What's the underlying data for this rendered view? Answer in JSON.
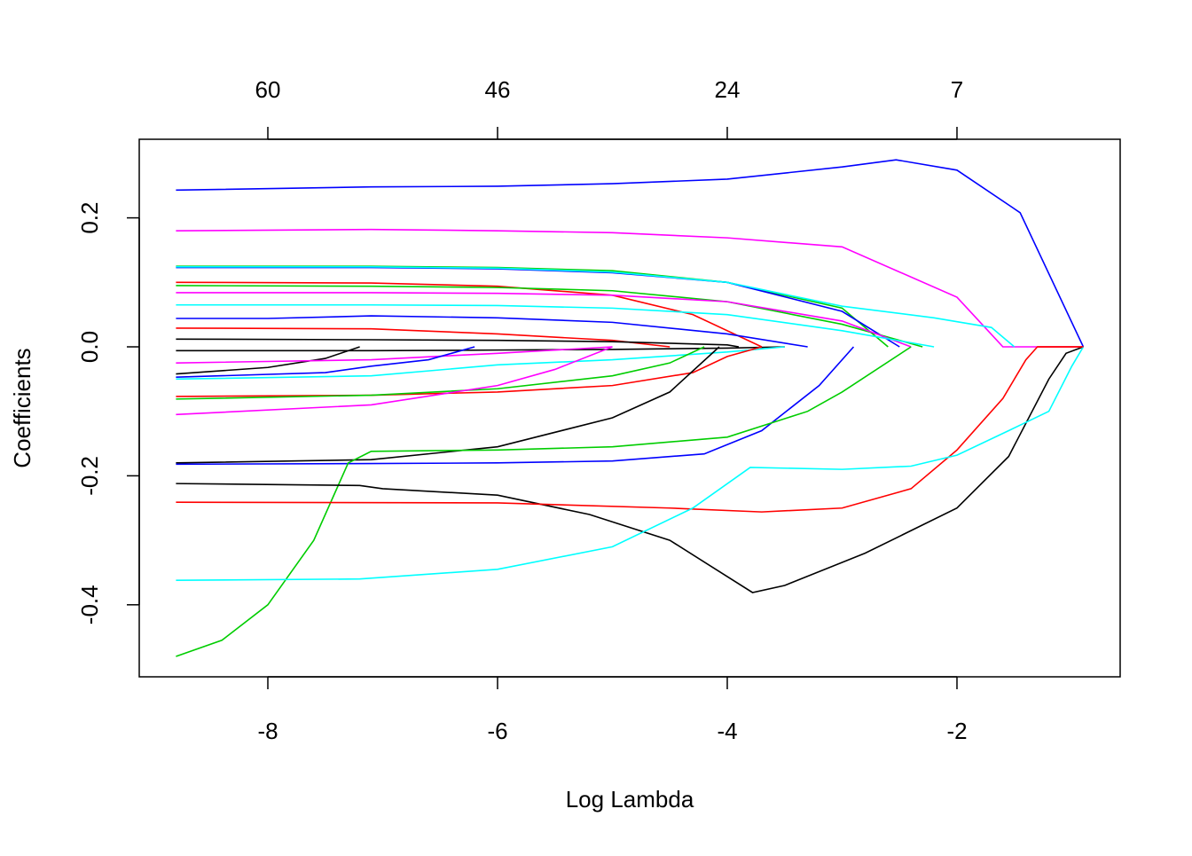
{
  "chart_data": {
    "type": "line",
    "xlabel": "Log Lambda",
    "ylabel": "Coefficients",
    "xlim": [
      -9.0,
      -0.55
    ],
    "ylim": [
      -0.51,
      0.32
    ],
    "x_ticks": [
      -8,
      -6,
      -4,
      -2
    ],
    "x_tick_labels": [
      "-8",
      "-6",
      "-4",
      "-2"
    ],
    "y_ticks": [
      -0.4,
      -0.2,
      0.0,
      0.2
    ],
    "y_tick_labels": [
      "-0.4",
      "-0.2",
      "0.0",
      "0.2"
    ],
    "top_axis_ticks": [
      -8,
      -6,
      -4,
      -2
    ],
    "top_axis_labels": [
      "60",
      "46",
      "24",
      "7"
    ],
    "grid": false,
    "series": [
      {
        "color": "#0000FF",
        "x": [
          -8.8,
          -7.1,
          -6,
          -5,
          -4,
          -3,
          -2.53,
          -2,
          -1.45,
          -0.9
        ],
        "y": [
          0.243,
          0.248,
          0.249,
          0.253,
          0.26,
          0.279,
          0.29,
          0.274,
          0.208,
          0
        ]
      },
      {
        "color": "#FF00FF",
        "x": [
          -8.8,
          -7.1,
          -6,
          -5,
          -4,
          -3,
          -2,
          -1.6,
          -0.9
        ],
        "y": [
          0.18,
          0.182,
          0.18,
          0.177,
          0.169,
          0.155,
          0.077,
          0,
          0
        ]
      },
      {
        "color": "#00CD00",
        "x": [
          -8.8,
          -7.1,
          -6,
          -5,
          -4,
          -3,
          -2.6
        ],
        "y": [
          0.125,
          0.125,
          0.123,
          0.118,
          0.1,
          0.06,
          0
        ]
      },
      {
        "color": "#0000FF",
        "x": [
          -8.8,
          -7.1,
          -6,
          -5,
          -4,
          -3,
          -2.5
        ],
        "y": [
          0.123,
          0.123,
          0.121,
          0.115,
          0.1,
          0.055,
          0
        ]
      },
      {
        "color": "#00FFFF",
        "x": [
          -8.8,
          -7.1,
          -6,
          -5,
          -4,
          -3,
          -2.2,
          -1.7,
          -1.5
        ],
        "y": [
          0.124,
          0.124,
          0.122,
          0.116,
          0.1,
          0.063,
          0.045,
          0.03,
          0
        ]
      },
      {
        "color": "#FF0000",
        "x": [
          -8.8,
          -7.1,
          -6,
          -5,
          -4.3,
          -3.7
        ],
        "y": [
          0.1,
          0.099,
          0.094,
          0.08,
          0.05,
          0
        ]
      },
      {
        "color": "#00CD00",
        "x": [
          -8.8,
          -7.1,
          -6,
          -5,
          -4,
          -3,
          -2.3
        ],
        "y": [
          0.095,
          0.094,
          0.092,
          0.087,
          0.07,
          0.035,
          0
        ]
      },
      {
        "color": "#FF00FF",
        "x": [
          -8.8,
          -7.1,
          -6,
          -5,
          -4,
          -3,
          -2.4
        ],
        "y": [
          0.084,
          0.084,
          0.083,
          0.08,
          0.07,
          0.04,
          0
        ]
      },
      {
        "color": "#00FFFF",
        "x": [
          -8.8,
          -7.1,
          -6,
          -5,
          -4,
          -3,
          -2.2
        ],
        "y": [
          0.065,
          0.065,
          0.064,
          0.06,
          0.05,
          0.025,
          0
        ]
      },
      {
        "color": "#0000FF",
        "x": [
          -8.8,
          -8,
          -7.1,
          -6,
          -5,
          -4,
          -3.3
        ],
        "y": [
          0.044,
          0.044,
          0.048,
          0.045,
          0.038,
          0.02,
          0
        ]
      },
      {
        "color": "#FF0000",
        "x": [
          -8.8,
          -7.1,
          -6,
          -5,
          -4.5
        ],
        "y": [
          0.029,
          0.028,
          0.02,
          0.01,
          0
        ]
      },
      {
        "color": "#000000",
        "x": [
          -8.8,
          -7.1,
          -6,
          -5,
          -4,
          -3.9
        ],
        "y": [
          0.012,
          0.011,
          0.01,
          0.008,
          0.003,
          0
        ]
      },
      {
        "color": "#000000",
        "x": [
          -8.8,
          -7.1,
          -6,
          -5,
          -4,
          -3.5
        ],
        "y": [
          -0.006,
          -0.006,
          -0.005,
          -0.004,
          -0.002,
          0
        ]
      },
      {
        "color": "#000000",
        "x": [
          -8.8,
          -8,
          -7.5,
          -7.2
        ],
        "y": [
          -0.042,
          -0.032,
          -0.018,
          0
        ]
      },
      {
        "color": "#FF00FF",
        "x": [
          -8.8,
          -7.1,
          -6,
          -5
        ],
        "y": [
          -0.025,
          -0.02,
          -0.01,
          0
        ]
      },
      {
        "color": "#00FFFF",
        "x": [
          -8.8,
          -7.1,
          -6,
          -5,
          -4,
          -3.5
        ],
        "y": [
          -0.05,
          -0.045,
          -0.028,
          -0.02,
          -0.008,
          0
        ]
      },
      {
        "color": "#0000FF",
        "x": [
          -8.8,
          -7.5,
          -7.1,
          -6.6,
          -6.2
        ],
        "y": [
          -0.047,
          -0.04,
          -0.03,
          -0.02,
          0
        ]
      },
      {
        "color": "#FF0000",
        "x": [
          -8.8,
          -7.1,
          -6,
          -5,
          -4.3,
          -4,
          -3.7
        ],
        "y": [
          -0.077,
          -0.075,
          -0.07,
          -0.06,
          -0.04,
          -0.015,
          0
        ]
      },
      {
        "color": "#00CD00",
        "x": [
          -8.8,
          -7.1,
          -6,
          -5,
          -4.5,
          -4.2
        ],
        "y": [
          -0.081,
          -0.075,
          -0.065,
          -0.045,
          -0.025,
          0
        ]
      },
      {
        "color": "#FF00FF",
        "x": [
          -8.8,
          -7.1,
          -6,
          -5.5,
          -5
        ],
        "y": [
          -0.105,
          -0.09,
          -0.06,
          -0.035,
          0
        ]
      },
      {
        "color": "#000000",
        "x": [
          -8.8,
          -7.1,
          -6,
          -5,
          -4.5,
          -4.07
        ],
        "y": [
          -0.18,
          -0.175,
          -0.155,
          -0.11,
          -0.07,
          0
        ]
      },
      {
        "color": "#0000FF",
        "x": [
          -8.8,
          -7.1,
          -6,
          -5,
          -4.2,
          -3.7,
          -3.2,
          -2.9
        ],
        "y": [
          -0.182,
          -0.181,
          -0.18,
          -0.177,
          -0.166,
          -0.13,
          -0.06,
          0
        ]
      },
      {
        "color": "#00CD00",
        "x": [
          -8.8,
          -8.4,
          -8,
          -7.6,
          -7.3,
          -7.1,
          -6,
          -5,
          -4,
          -3.3,
          -3,
          -2.4
        ],
        "y": [
          -0.48,
          -0.455,
          -0.4,
          -0.3,
          -0.18,
          -0.162,
          -0.16,
          -0.155,
          -0.14,
          -0.1,
          -0.07,
          0
        ]
      },
      {
        "color": "#000000",
        "x": [
          -8.8,
          -7.2,
          -7,
          -6,
          -5.2,
          -4.5,
          -3.78,
          -3.5,
          -2.8,
          -2,
          -1.55,
          -1.2,
          -1.05,
          -0.9
        ],
        "y": [
          -0.212,
          -0.215,
          -0.22,
          -0.23,
          -0.26,
          -0.3,
          -0.381,
          -0.37,
          -0.32,
          -0.25,
          -0.17,
          -0.05,
          -0.01,
          0
        ]
      },
      {
        "color": "#FF0000",
        "x": [
          -8.8,
          -6,
          -4.5,
          -3.7,
          -3,
          -2.4,
          -2,
          -1.6,
          -1.4,
          -1.3,
          -0.9
        ],
        "y": [
          -0.241,
          -0.242,
          -0.25,
          -0.256,
          -0.25,
          -0.22,
          -0.16,
          -0.08,
          -0.02,
          0,
          0
        ]
      },
      {
        "color": "#00FFFF",
        "x": [
          -8.8,
          -7.2,
          -6,
          -5,
          -4.3,
          -3.8,
          -3,
          -2.4,
          -2,
          -1.55,
          -1.2,
          -1.0,
          -0.9
        ],
        "y": [
          -0.362,
          -0.36,
          -0.345,
          -0.31,
          -0.25,
          -0.187,
          -0.19,
          -0.185,
          -0.168,
          -0.13,
          -0.1,
          -0.03,
          0
        ]
      }
    ]
  }
}
